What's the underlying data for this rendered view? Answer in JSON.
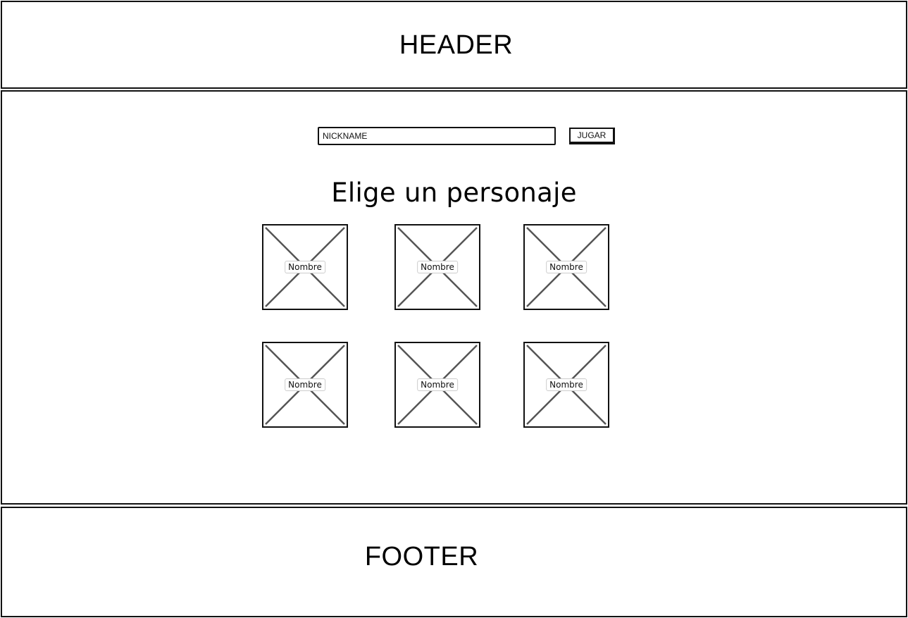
{
  "header": {
    "label": "HEADER"
  },
  "form": {
    "nickname_placeholder": "NICKNAME",
    "play_button": "JUGAR"
  },
  "main": {
    "title": "Elige un personaje"
  },
  "characters": [
    {
      "name": "Nombre"
    },
    {
      "name": "Nombre"
    },
    {
      "name": "Nombre"
    },
    {
      "name": "Nombre"
    },
    {
      "name": "Nombre"
    },
    {
      "name": "Nombre"
    }
  ],
  "footer": {
    "label": "FOOTER"
  }
}
